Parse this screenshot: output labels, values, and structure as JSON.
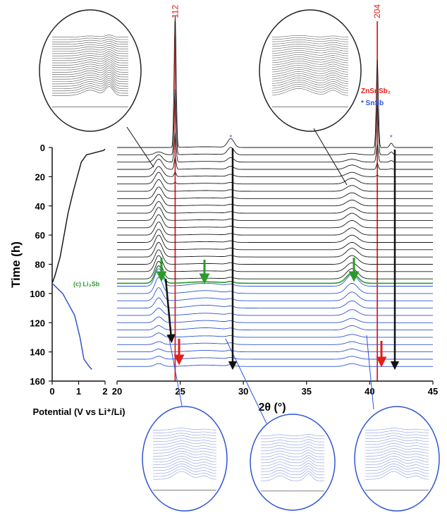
{
  "chart_data": [
    {
      "type": "line",
      "xlabel": "Potential (V vs Li⁺/Li)",
      "ylabel": "Time (h)",
      "xlim": [
        0,
        2
      ],
      "xticks": [
        0,
        1,
        2
      ],
      "ylim": [
        0,
        160
      ],
      "yticks": [
        0,
        20,
        40,
        60,
        80,
        100,
        120,
        140,
        160
      ],
      "series": [
        {
          "color": "#1a1a1a",
          "x": [
            2.0,
            1.95,
            1.3,
            1.1,
            0.95,
            0.8,
            0.6,
            0.45,
            0.3,
            0.1,
            0.0
          ],
          "values": [
            1,
            2,
            5,
            10,
            20,
            30,
            45,
            60,
            75,
            88,
            93
          ]
        },
        {
          "color": "#2f55d4",
          "x": [
            0.0,
            0.4,
            0.85,
            1.05,
            1.2,
            1.4,
            1.5
          ],
          "values": [
            93,
            100,
            115,
            130,
            145,
            150,
            152
          ]
        }
      ]
    },
    {
      "type": "waterfall",
      "xlabel": "2θ (°)",
      "xlim": [
        20,
        45
      ],
      "xticks": [
        20,
        25,
        30,
        35,
        40,
        45
      ],
      "ylim": [
        0,
        160
      ],
      "peak_centers": [
        23.3,
        24.6,
        29.0,
        38.6,
        40.6,
        41.7,
        27.0
      ],
      "peak_widths": [
        0.3,
        0.08,
        0.25,
        0.45,
        0.08,
        0.12,
        1.2
      ],
      "traces": [
        {
          "color": "#1a1a1a",
          "times": [
            0,
            5,
            10,
            15,
            20,
            25,
            30,
            35,
            40,
            45,
            50,
            55,
            60,
            65,
            70,
            75,
            80,
            85,
            90
          ],
          "heights": [
            [
              0,
              2,
              5,
              7,
              7,
              8,
              8,
              8,
              8,
              8,
              9,
              9,
              9,
              9,
              10,
              10,
              10,
              11,
              12
            ],
            [
              90,
              45,
              20,
              8,
              3,
              1,
              0,
              0,
              0,
              0,
              0,
              0,
              0,
              0,
              0,
              0,
              0,
              0,
              0
            ],
            [
              6,
              5,
              3,
              2,
              1.5,
              1,
              1,
              1,
              1,
              1,
              1,
              1,
              1,
              1,
              1,
              1,
              1,
              1,
              1
            ],
            [
              0,
              1,
              2,
              3,
              3,
              4,
              4,
              4,
              4,
              4,
              5,
              5,
              5,
              5,
              5,
              6,
              6,
              6,
              7
            ],
            [
              60,
              35,
              12,
              4,
              1,
              0,
              0,
              0,
              0,
              0,
              0,
              0,
              0,
              0,
              0,
              0,
              0,
              0,
              0
            ],
            [
              3,
              2,
              1,
              0.5,
              0,
              0,
              0,
              0,
              0,
              0,
              0,
              0,
              0,
              0,
              0,
              0,
              0,
              0,
              0
            ],
            [
              0.5,
              0.5,
              0.5,
              0.5,
              0.5,
              0.5,
              0.5,
              0.5,
              0.5,
              0.5,
              0.5,
              0.5,
              0.5,
              0.5,
              0.5,
              0.5,
              0.5,
              0.5,
              0.5
            ]
          ]
        },
        {
          "color": "#2a9a2a",
          "times": [
            93
          ],
          "heights": [
            [
              12
            ],
            [
              0
            ],
            [
              1
            ],
            [
              7
            ],
            [
              0
            ],
            [
              0
            ],
            [
              1
            ]
          ]
        },
        {
          "color": "#2f55d4",
          "times": [
            95,
            100,
            105,
            110,
            115,
            120,
            125,
            130,
            135,
            140,
            145,
            150
          ],
          "heights": [
            [
              12,
              11,
              9,
              7,
              5,
              4,
              3,
              3,
              2,
              2,
              2,
              2
            ],
            [
              0,
              0,
              0,
              0,
              0,
              0,
              0,
              0,
              0,
              0,
              0,
              0
            ],
            [
              1,
              1,
              1,
              1,
              1,
              1,
              1,
              1,
              1,
              1,
              1,
              1
            ],
            [
              8,
              7,
              6,
              5,
              4,
              3,
              3,
              2,
              2,
              2,
              2,
              2
            ],
            [
              0,
              0,
              0,
              0,
              0,
              0,
              0,
              0,
              0,
              0,
              0,
              0
            ],
            [
              0,
              0,
              0,
              0,
              0,
              0,
              0,
              0,
              0,
              0,
              0,
              0
            ],
            [
              2,
              2,
              2,
              2,
              1.5,
              1.5,
              1.5,
              1,
              1,
              1,
              1,
              1
            ]
          ]
        }
      ],
      "reflections": [
        {
          "label": "112",
          "x": 24.6
        },
        {
          "label": "204",
          "x": 40.6
        }
      ],
      "snsb_marks": {
        "label": "*",
        "x": [
          29.0,
          41.7
        ]
      },
      "legend": [
        {
          "label": "ZnSnSb₂",
          "color": "#e0201b"
        },
        {
          "label": "* SnSb",
          "color": "#2f55d4"
        }
      ],
      "phase_label": {
        "label": "(c) Li₃Sb",
        "color": "#2a9a2a",
        "time": 93
      }
    }
  ]
}
